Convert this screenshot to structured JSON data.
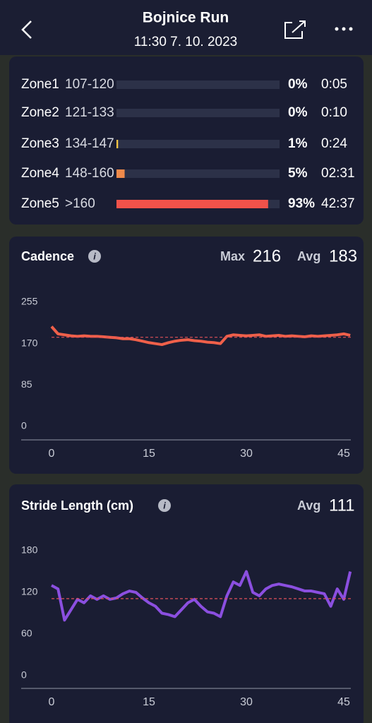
{
  "header": {
    "title": "Bojnice Run",
    "subtitle": "11:30 7. 10. 2023"
  },
  "zones": [
    {
      "name": "Zone1",
      "range": "107-120",
      "value": 0,
      "value_label": "0%",
      "time": "0:05",
      "color": "#f5c542"
    },
    {
      "name": "Zone2",
      "range": "121-133",
      "value": 0,
      "value_label": "0%",
      "time": "0:10",
      "color": "#f5c542"
    },
    {
      "name": "Zone3",
      "range": "134-147",
      "value": 1,
      "value_label": "1%",
      "time": "0:24",
      "color": "#f5c542"
    },
    {
      "name": "Zone4",
      "range": "148-160",
      "value": 5,
      "value_label": "5%",
      "time": "02:31",
      "color": "#f08a4b"
    },
    {
      "name": "Zone5",
      "range": ">160",
      "value": 93,
      "value_label": "93%",
      "time": "42:37",
      "color": "#f0524a"
    }
  ],
  "chart_data": [
    {
      "type": "line",
      "title": "Cadence",
      "max_label": "Max",
      "max": 216,
      "avg_label": "Avg",
      "avg": 183,
      "color": "#f0604a",
      "avg_color": "#e0505a",
      "x": [
        0,
        1,
        2,
        3,
        4,
        5,
        6,
        7,
        8,
        9,
        10,
        11,
        12,
        13,
        14,
        15,
        16,
        17,
        18,
        19,
        20,
        21,
        22,
        23,
        24,
        25,
        26,
        27,
        28,
        29,
        30,
        31,
        32,
        33,
        34,
        35,
        36,
        37,
        38,
        39,
        40,
        41,
        42,
        43,
        44,
        45,
        46
      ],
      "values": [
        205,
        190,
        188,
        186,
        185,
        186,
        185,
        185,
        184,
        183,
        182,
        180,
        180,
        178,
        175,
        172,
        170,
        168,
        172,
        175,
        177,
        178,
        176,
        175,
        173,
        172,
        170,
        185,
        188,
        187,
        186,
        187,
        188,
        185,
        186,
        187,
        185,
        186,
        185,
        184,
        186,
        185,
        186,
        187,
        188,
        190,
        187
      ],
      "xlim": [
        0,
        47
      ],
      "xticks": [
        0,
        15,
        30,
        45
      ],
      "ylim": [
        0,
        255
      ],
      "yticks": [
        0,
        85,
        170,
        255
      ]
    },
    {
      "type": "line",
      "title": "Stride Length (cm)",
      "avg_label": "Avg",
      "avg": 111,
      "color": "#8b4fe0",
      "avg_color": "#e0505a",
      "x": [
        0,
        1,
        2,
        3,
        4,
        5,
        6,
        7,
        8,
        9,
        10,
        11,
        12,
        13,
        14,
        15,
        16,
        17,
        18,
        19,
        20,
        21,
        22,
        23,
        24,
        25,
        26,
        27,
        28,
        29,
        30,
        31,
        32,
        33,
        34,
        35,
        36,
        37,
        38,
        39,
        40,
        41,
        42,
        43,
        44,
        45,
        46
      ],
      "values": [
        130,
        125,
        80,
        95,
        110,
        105,
        115,
        110,
        115,
        110,
        112,
        118,
        122,
        120,
        112,
        105,
        100,
        90,
        88,
        85,
        95,
        105,
        110,
        100,
        92,
        90,
        85,
        115,
        135,
        130,
        150,
        120,
        115,
        125,
        130,
        132,
        130,
        128,
        125,
        122,
        122,
        120,
        118,
        100,
        125,
        110,
        150
      ],
      "xlim": [
        0,
        47
      ],
      "xticks": [
        0,
        15,
        30,
        45
      ],
      "ylim": [
        0,
        180
      ],
      "yticks": [
        0,
        60,
        120,
        180
      ]
    }
  ]
}
